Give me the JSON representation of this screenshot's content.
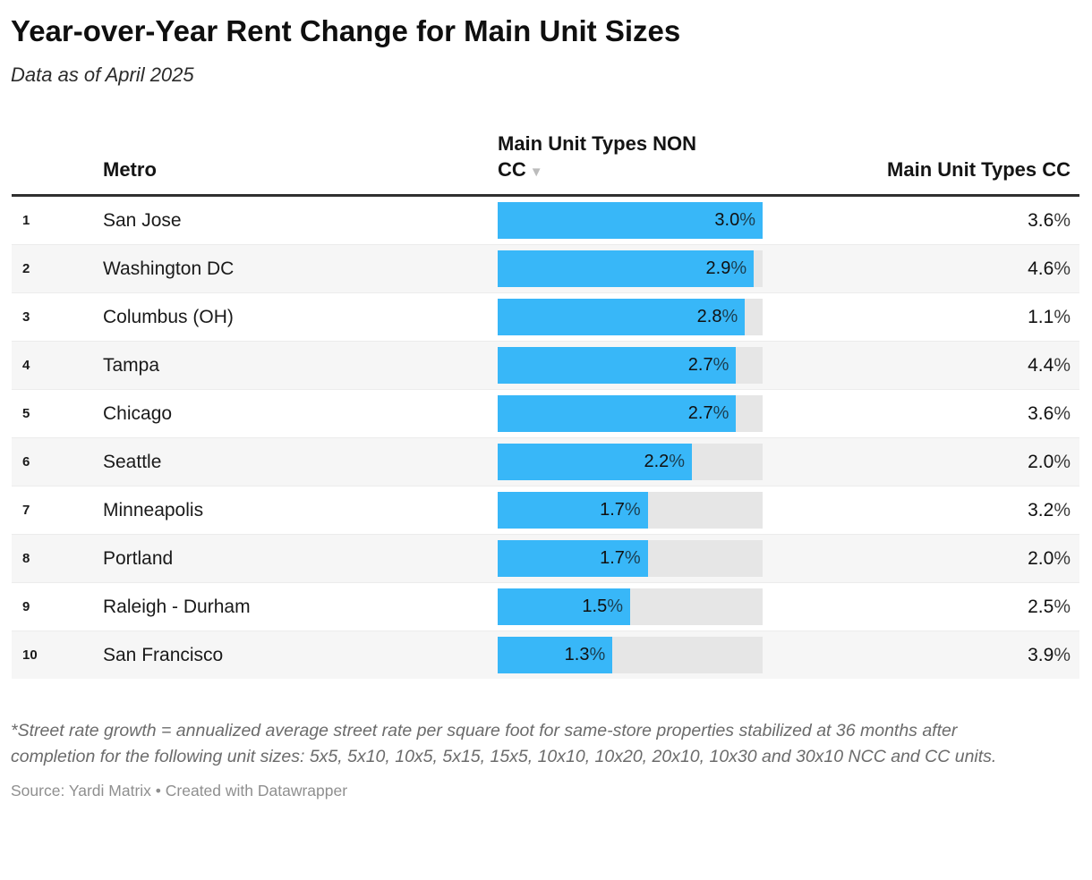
{
  "header": {
    "title": "Year-over-Year Rent Change for Main Unit Sizes",
    "subtitle": "Data as of April 2025"
  },
  "table": {
    "columns": {
      "metro": "Metro",
      "non_cc": "Main Unit Types NON CC",
      "cc": "Main Unit Types CC"
    },
    "sort_icon": "▼",
    "rows": [
      {
        "rank": "1",
        "metro": "San Jose",
        "non_cc": 3.0,
        "non_cc_label": "3.0%",
        "cc_label": "3.6%"
      },
      {
        "rank": "2",
        "metro": "Washington DC",
        "non_cc": 2.9,
        "non_cc_label": "2.9%",
        "cc_label": "4.6%"
      },
      {
        "rank": "3",
        "metro": "Columbus (OH)",
        "non_cc": 2.8,
        "non_cc_label": "2.8%",
        "cc_label": "1.1%"
      },
      {
        "rank": "4",
        "metro": "Tampa",
        "non_cc": 2.7,
        "non_cc_label": "2.7%",
        "cc_label": "4.4%"
      },
      {
        "rank": "5",
        "metro": "Chicago",
        "non_cc": 2.7,
        "non_cc_label": "2.7%",
        "cc_label": "3.6%"
      },
      {
        "rank": "6",
        "metro": "Seattle",
        "non_cc": 2.2,
        "non_cc_label": "2.2%",
        "cc_label": "2.0%"
      },
      {
        "rank": "7",
        "metro": "Minneapolis",
        "non_cc": 1.7,
        "non_cc_label": "1.7%",
        "cc_label": "3.2%"
      },
      {
        "rank": "8",
        "metro": "Portland",
        "non_cc": 1.7,
        "non_cc_label": "1.7%",
        "cc_label": "2.0%"
      },
      {
        "rank": "9",
        "metro": "Raleigh - Durham",
        "non_cc": 1.5,
        "non_cc_label": "1.5%",
        "cc_label": "2.5%"
      },
      {
        "rank": "10",
        "metro": "San Francisco",
        "non_cc": 1.3,
        "non_cc_label": "1.3%",
        "cc_label": "3.9%"
      }
    ]
  },
  "chart_data": {
    "type": "bar",
    "orientation": "horizontal",
    "title": "Year-over-Year Rent Change for Main Unit Sizes",
    "subtitle": "Data as of April 2025",
    "categories": [
      "San Jose",
      "Washington DC",
      "Columbus (OH)",
      "Tampa",
      "Chicago",
      "Seattle",
      "Minneapolis",
      "Portland",
      "Raleigh - Durham",
      "San Francisco"
    ],
    "series": [
      {
        "name": "Main Unit Types NON CC",
        "values": [
          3.0,
          2.9,
          2.8,
          2.7,
          2.7,
          2.2,
          1.7,
          1.7,
          1.5,
          1.3
        ],
        "display": "bar"
      },
      {
        "name": "Main Unit Types CC",
        "values": [
          3.6,
          4.6,
          1.1,
          4.4,
          3.6,
          2.0,
          3.2,
          2.0,
          2.5,
          3.9
        ],
        "display": "text"
      }
    ],
    "value_suffix": "%",
    "bar_axis_max": 3.0,
    "sorted_by": "Main Unit Types NON CC",
    "sort_direction": "descending",
    "grid": false,
    "legend": "none"
  },
  "colors": {
    "bar_fill": "#38b7f8",
    "bar_track": "#e6e6e6",
    "row_stripe": "#f6f6f6",
    "header_rule": "#2f2f2f"
  },
  "footer": {
    "note": "*Street rate growth = annualized average street rate per square foot for same-store properties stabilized at 36 months after completion for the following unit sizes: 5x5, 5x10, 10x5, 5x15, 15x5, 10x10, 10x20, 20x10, 10x30 and 30x10 NCC and CC units.",
    "source": "Source: Yardi Matrix • Created with Datawrapper"
  }
}
